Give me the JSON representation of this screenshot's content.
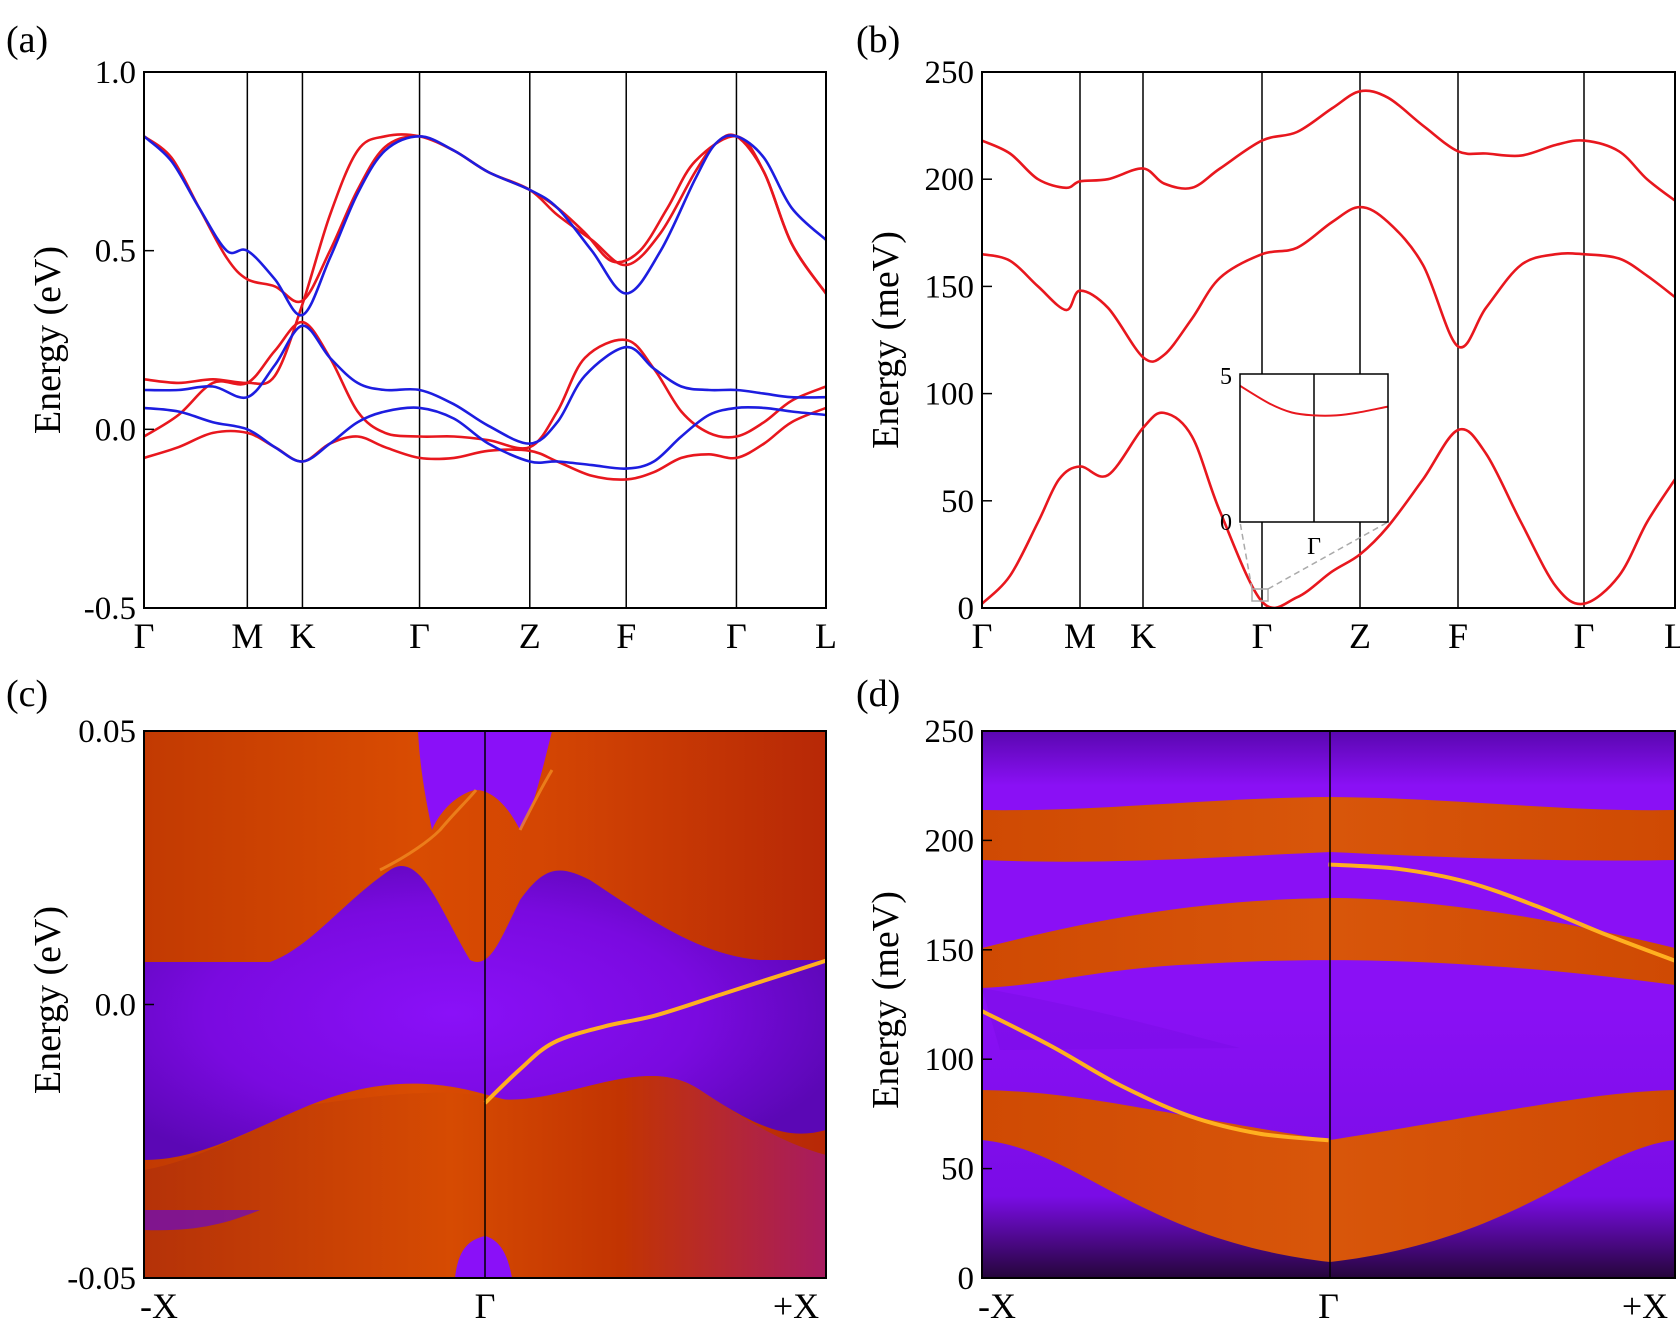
{
  "chart_data": [
    {
      "panel": "(a)",
      "type": "line",
      "ylabel": "Energy (eV)",
      "ylim": [
        -0.5,
        1.0
      ],
      "yticks": [
        "1.0",
        "0.5",
        "0.0",
        "-0.5"
      ],
      "ytick_values": [
        1.0,
        0.5,
        0.0,
        -0.5
      ],
      "xticks": [
        "Γ",
        "M",
        "K",
        "Γ",
        "Z",
        "F",
        "Γ",
        "L"
      ],
      "xtick_positions": [
        0,
        1.5,
        2.3,
        4.0,
        5.6,
        7.0,
        8.6,
        9.9
      ],
      "series": [
        {
          "name": "red band 1",
          "color": "#e8171e",
          "x": [
            0,
            0.4,
            0.8,
            1.2,
            1.5,
            1.9,
            2.3,
            2.7,
            3.1,
            3.5,
            4.0,
            4.5,
            5.0,
            5.6,
            6.0,
            6.5,
            7.0,
            7.5,
            8.0,
            8.3,
            8.6,
            9.0,
            9.4,
            9.9
          ],
          "y": [
            0.82,
            0.76,
            0.62,
            0.48,
            0.42,
            0.4,
            0.36,
            0.5,
            0.67,
            0.79,
            0.82,
            0.78,
            0.72,
            0.67,
            0.6,
            0.53,
            0.46,
            0.55,
            0.72,
            0.8,
            0.82,
            0.72,
            0.52,
            0.38
          ]
        },
        {
          "name": "red band 2",
          "color": "#e8171e",
          "x": [
            0,
            0.5,
            1.0,
            1.5,
            1.9,
            2.3,
            2.7,
            3.1,
            3.5,
            4.0,
            4.5,
            5.0,
            5.6,
            6.0,
            6.4,
            7.0,
            7.4,
            7.8,
            8.2,
            8.6,
            9.0,
            9.4,
            9.9
          ],
          "y": [
            -0.02,
            0.04,
            0.13,
            0.13,
            0.22,
            0.3,
            0.2,
            0.05,
            -0.01,
            -0.02,
            -0.02,
            -0.03,
            -0.05,
            0.05,
            0.2,
            0.25,
            0.17,
            0.05,
            -0.01,
            -0.02,
            0.02,
            0.08,
            0.12
          ]
        },
        {
          "name": "red band 3",
          "color": "#e8171e",
          "x": [
            0,
            0.5,
            1.0,
            1.5,
            1.9,
            2.3,
            2.7,
            3.1,
            3.5,
            4.0,
            4.5,
            5.0,
            5.6,
            6.0,
            6.4,
            6.8,
            7.2,
            7.6,
            8.0,
            8.6,
            9.0,
            9.4,
            9.9
          ],
          "y": [
            0.14,
            0.13,
            0.14,
            0.13,
            0.15,
            0.35,
            0.6,
            0.78,
            0.82,
            0.82,
            0.78,
            0.72,
            0.67,
            0.62,
            0.55,
            0.47,
            0.5,
            0.62,
            0.75,
            0.82,
            0.72,
            0.52,
            0.38
          ]
        },
        {
          "name": "red band 4",
          "color": "#e8171e",
          "x": [
            0,
            0.5,
            1.0,
            1.5,
            1.9,
            2.3,
            2.7,
            3.1,
            3.5,
            4.0,
            4.5,
            5.0,
            5.6,
            6.0,
            6.5,
            7.0,
            7.4,
            7.8,
            8.2,
            8.6,
            9.0,
            9.4,
            9.9
          ],
          "y": [
            -0.08,
            -0.05,
            -0.01,
            -0.01,
            -0.05,
            -0.09,
            -0.04,
            -0.02,
            -0.05,
            -0.08,
            -0.08,
            -0.06,
            -0.06,
            -0.09,
            -0.13,
            -0.14,
            -0.12,
            -0.08,
            -0.07,
            -0.08,
            -0.04,
            0.02,
            0.06
          ]
        },
        {
          "name": "blue band 1",
          "color": "#1d1de0",
          "x": [
            0,
            0.4,
            0.8,
            1.2,
            1.5,
            1.9,
            2.3,
            2.7,
            3.1,
            3.5,
            4.0,
            4.5,
            5.0,
            5.6,
            6.0,
            6.5,
            7.0,
            7.5,
            8.0,
            8.3,
            8.6,
            9.0,
            9.4,
            9.9
          ],
          "y": [
            0.82,
            0.75,
            0.62,
            0.5,
            0.5,
            0.42,
            0.32,
            0.48,
            0.66,
            0.78,
            0.82,
            0.78,
            0.72,
            0.67,
            0.62,
            0.5,
            0.38,
            0.5,
            0.7,
            0.8,
            0.82,
            0.76,
            0.62,
            0.53
          ]
        },
        {
          "name": "blue band 2",
          "color": "#1d1de0",
          "x": [
            0,
            0.5,
            1.0,
            1.5,
            1.9,
            2.3,
            2.7,
            3.1,
            3.5,
            4.0,
            4.5,
            5.0,
            5.6,
            6.0,
            6.4,
            7.0,
            7.4,
            7.8,
            8.2,
            8.6,
            9.0,
            9.4,
            9.9
          ],
          "y": [
            0.11,
            0.11,
            0.12,
            0.09,
            0.18,
            0.29,
            0.2,
            0.13,
            0.11,
            0.11,
            0.07,
            0.01,
            -0.04,
            0.02,
            0.15,
            0.23,
            0.17,
            0.12,
            0.11,
            0.11,
            0.1,
            0.09,
            0.09
          ]
        },
        {
          "name": "blue band 3",
          "color": "#1d1de0",
          "x": [
            0,
            0.5,
            1.0,
            1.5,
            1.9,
            2.3,
            2.7,
            3.1,
            3.5,
            4.0,
            4.5,
            5.0,
            5.6,
            6.0,
            6.5,
            7.0,
            7.4,
            7.8,
            8.2,
            8.6,
            9.0,
            9.4,
            9.9
          ],
          "y": [
            0.06,
            0.05,
            0.02,
            0.0,
            -0.05,
            -0.09,
            -0.04,
            0.02,
            0.05,
            0.06,
            0.03,
            -0.04,
            -0.09,
            -0.09,
            -0.1,
            -0.11,
            -0.09,
            -0.02,
            0.04,
            0.06,
            0.06,
            0.05,
            0.04
          ]
        }
      ]
    },
    {
      "panel": "(b)",
      "type": "line",
      "ylabel": "Energy (meV)",
      "ylim": [
        0,
        250
      ],
      "yticks": [
        "250",
        "200",
        "150",
        "100",
        "50",
        "0"
      ],
      "ytick_values": [
        250,
        200,
        150,
        100,
        50,
        0
      ],
      "xticks": [
        "Γ",
        "M",
        "K",
        "Γ",
        "Z",
        "F",
        "Γ",
        "L"
      ],
      "xtick_positions": [
        0,
        1.4,
        2.3,
        4.0,
        5.4,
        6.8,
        8.6,
        9.9
      ],
      "series": [
        {
          "name": "band 1",
          "color": "#e8171e",
          "x": [
            0,
            0.4,
            0.8,
            1.1,
            1.4,
            1.8,
            2.3,
            2.6,
            3.0,
            3.4,
            4.0,
            4.5,
            5.0,
            5.4,
            5.8,
            6.3,
            6.8,
            7.2,
            7.7,
            8.2,
            8.6,
            9.1,
            9.5,
            9.9
          ],
          "y": [
            2,
            15,
            40,
            60,
            66,
            62,
            84,
            91,
            80,
            45,
            3,
            5,
            17,
            25,
            38,
            60,
            83,
            72,
            40,
            10,
            2,
            15,
            40,
            60
          ]
        },
        {
          "name": "band 2",
          "color": "#e8171e",
          "x": [
            0,
            0.4,
            0.8,
            1.2,
            1.4,
            1.8,
            2.3,
            2.6,
            3.0,
            3.4,
            4.0,
            4.5,
            5.0,
            5.4,
            5.8,
            6.3,
            6.8,
            7.2,
            7.7,
            8.2,
            8.6,
            9.1,
            9.5,
            9.9
          ],
          "y": [
            165,
            162,
            150,
            139,
            148,
            140,
            117,
            118,
            135,
            154,
            165,
            168,
            180,
            187,
            180,
            160,
            122,
            140,
            160,
            165,
            165,
            163,
            155,
            145
          ]
        },
        {
          "name": "band 3",
          "color": "#e8171e",
          "x": [
            0,
            0.4,
            0.8,
            1.2,
            1.4,
            1.8,
            2.3,
            2.6,
            3.0,
            3.4,
            4.0,
            4.5,
            5.0,
            5.4,
            5.8,
            6.3,
            6.8,
            7.2,
            7.7,
            8.2,
            8.6,
            9.1,
            9.5,
            9.9
          ],
          "y": [
            218,
            212,
            200,
            196,
            199,
            200,
            205,
            198,
            196,
            205,
            218,
            222,
            233,
            241,
            238,
            225,
            213,
            212,
            211,
            216,
            218,
            213,
            200,
            190
          ]
        }
      ],
      "inset": {
        "ylim": [
          0,
          5
        ],
        "yticks": [
          "5",
          "0"
        ],
        "xticks": [
          "Γ"
        ],
        "series": [
          {
            "name": "inset band",
            "color": "#e8171e",
            "x": [
              -1,
              -0.6,
              -0.3,
              0,
              0.3,
              0.6,
              1
            ],
            "y": [
              4.6,
              4.0,
              3.7,
              3.6,
              3.6,
              3.7,
              3.9
            ]
          }
        ]
      }
    },
    {
      "panel": "(c)",
      "type": "heatmap",
      "ylabel": "Energy (eV)",
      "ylim": [
        -0.05,
        0.05
      ],
      "yticks": [
        "0.05",
        "0.0",
        "-0.05"
      ],
      "ytick_values": [
        0.05,
        0.0,
        -0.05
      ],
      "xticks": [
        "-X",
        "Γ",
        "+X"
      ],
      "surface_state": {
        "x": [
          0,
          0.1,
          0.2,
          0.35,
          0.5,
          0.7,
          0.85,
          1.0
        ],
        "y": [
          -0.018,
          -0.012,
          -0.007,
          -0.004,
          -0.002,
          0.002,
          0.005,
          0.008
        ]
      }
    },
    {
      "panel": "(d)",
      "type": "heatmap",
      "ylabel": "Energy (meV)",
      "ylim": [
        0,
        250
      ],
      "yticks": [
        "250",
        "200",
        "150",
        "100",
        "50",
        "0"
      ],
      "ytick_values": [
        250,
        200,
        150,
        100,
        50,
        0
      ],
      "xticks": [
        "-X",
        "Γ",
        "+X"
      ],
      "surface_state_1": {
        "x": [
          -1,
          -0.8,
          -0.6,
          -0.4,
          -0.2,
          0
        ],
        "y": [
          122,
          106,
          88,
          74,
          66,
          63
        ]
      },
      "surface_state_2": {
        "x": [
          0,
          0.2,
          0.4,
          0.6,
          0.8,
          1
        ],
        "y": [
          189,
          187,
          181,
          170,
          157,
          145
        ]
      }
    }
  ],
  "colors": {
    "red": "#e8171e",
    "blue": "#1d1de0",
    "purple": "#8a00ff",
    "orange": "#d64a00"
  }
}
